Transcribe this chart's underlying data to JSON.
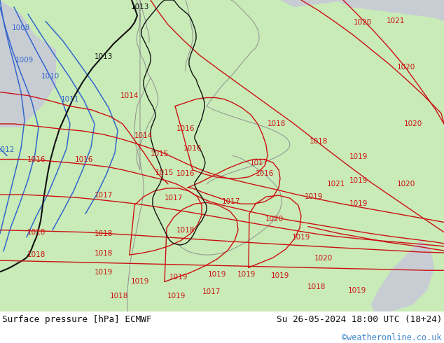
{
  "title_left": "Surface pressure [hPa] ECMWF",
  "title_right": "Su 26-05-2024 18:00 UTC (18+24)",
  "watermark": "©weatheronline.co.uk",
  "bg_color": "#ffffff",
  "land_green": "#c8ebb8",
  "sea_grey": "#c8cdd4",
  "border_grey": "#a0a8b0",
  "footer_text_color": "#111111",
  "watermark_color": "#4488cc",
  "figsize": [
    6.34,
    4.9
  ],
  "dpi": 100,
  "blue_color": "#3366cc",
  "black_color": "#111111",
  "red_color": "#cc1111",
  "germany_border": "#111111",
  "country_border": "#909090"
}
